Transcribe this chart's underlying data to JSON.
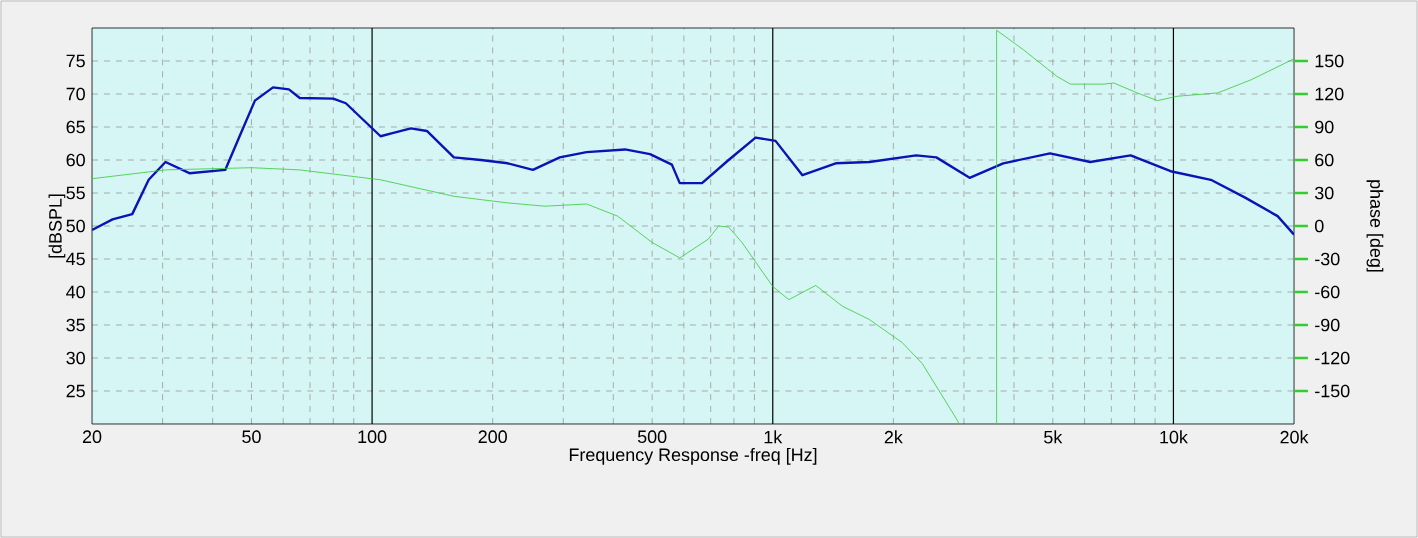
{
  "chart_data": {
    "type": "line",
    "xlabel": "Frequency Response -freq [Hz]",
    "ylabel": "[dBSPL]",
    "y2label": "phase [deg]",
    "log": "x",
    "grid": true,
    "line_style": "solid",
    "xlim": [
      20,
      20000
    ],
    "xticks": [
      20,
      50,
      100,
      200,
      500,
      {
        "value": 1000,
        "label": "1k"
      },
      {
        "value": 2000,
        "label": "2k"
      },
      {
        "value": 5000,
        "label": "5k"
      },
      {
        "value": 10000,
        "label": "10k"
      },
      {
        "value": 20000,
        "label": "20k"
      }
    ],
    "ylim": [
      20,
      80
    ],
    "yticks": [
      25,
      30,
      35,
      40,
      45,
      50,
      55,
      60,
      65,
      70,
      75
    ],
    "y2lim": [
      -180,
      180
    ],
    "y2ticks": [
      -150,
      -120,
      -90,
      -60,
      -30,
      0,
      30,
      60,
      90,
      120,
      150
    ],
    "series": [
      {
        "color": "#0a14b4",
        "x": [
          20,
          22.5,
          25.2,
          27.7,
          30.5,
          35,
          43,
          46.7,
          51,
          56.6,
          62,
          66,
          80,
          86,
          95,
          105,
          113,
          125,
          137,
          160,
          187,
          218,
          252,
          294,
          343,
          428,
          494,
          560,
          586,
          666,
          776,
          906,
          1016,
          1186,
          1436,
          1742,
          2280,
          2560,
          3100,
          3760,
          4920,
          6200,
          7820,
          9840,
          12400,
          15100,
          18200,
          20000
        ],
        "values": [
          49.4,
          51,
          51.8,
          57,
          59.7,
          58,
          58.5,
          63.6,
          69,
          71,
          70.7,
          69.4,
          69.3,
          68.6,
          66.1,
          63.6,
          64.1,
          64.8,
          64.4,
          60.4,
          60,
          59.5,
          58.5,
          60.4,
          61.2,
          61.6,
          60.9,
          59.3,
          56.5,
          56.5,
          60,
          63.4,
          62.9,
          57.7,
          59.5,
          59.7,
          60.7,
          60.4,
          57.3,
          59.5,
          61,
          59.7,
          60.7,
          58.3,
          57,
          54.3,
          51.5,
          48.7
        ]
      },
      {
        "color": "#33cc33",
        "axis": "y2",
        "x": [
          20,
          30.5,
          50,
          66,
          105,
          160,
          218,
          270,
          343,
          410,
          500,
          586,
          690,
          733,
          776,
          838,
          1000,
          1097,
          1280,
          1493,
          1742,
          2104,
          2360,
          2870,
          2920,
          null,
          3620,
          3620,
          4230,
          5120,
          5530,
          6700,
          7100,
          8120,
          9120,
          10250,
          12900,
          15640,
          20000
        ],
        "values": [
          43,
          51,
          53,
          51,
          42,
          27,
          21,
          18,
          20,
          9,
          -15,
          -29,
          -12,
          0,
          -1,
          -15,
          -55,
          -67,
          -54,
          -73,
          -85,
          -106,
          -125,
          -175,
          -180,
          null,
          -180,
          178,
          160,
          136,
          129,
          129,
          130,
          121,
          114,
          118,
          121,
          133,
          152
        ]
      }
    ]
  }
}
